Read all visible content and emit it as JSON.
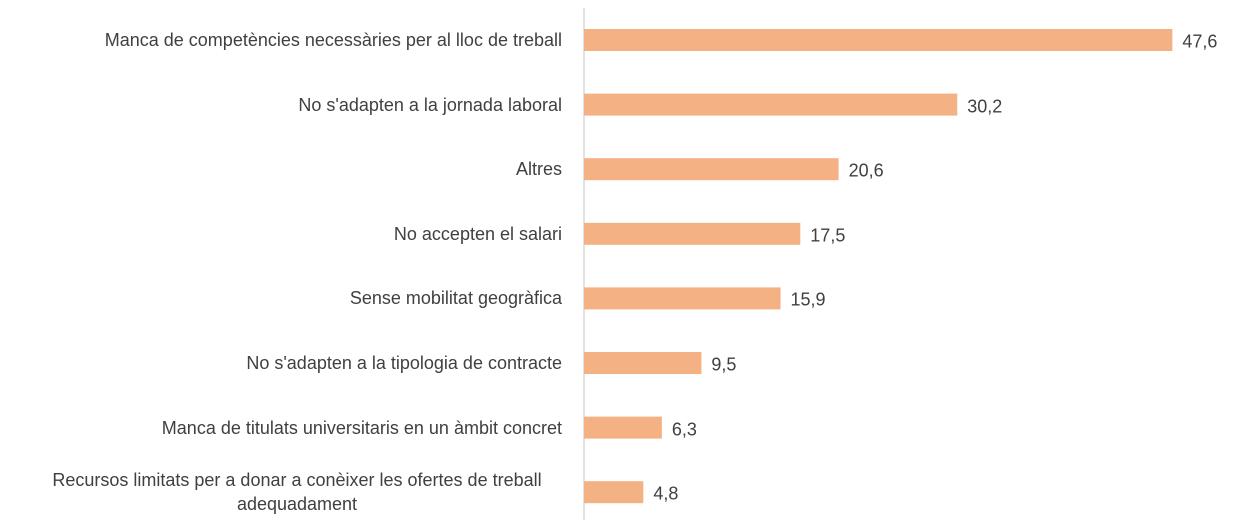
{
  "chart_data": {
    "type": "bar",
    "orientation": "horizontal",
    "categories": [
      "Manca de competències necessàries per al lloc de treball",
      "No s'adapten  a la jornada laboral",
      "Altres",
      "No accepten el salari",
      "Sense mobilitat geogràfica",
      "No s'adapten a la tipologia de contracte",
      "Manca de titulats universitaris en un àmbit concret",
      "Recursos limitats per a donar a conèixer les ofertes de treball adequadament"
    ],
    "values": [
      47.6,
      30.2,
      20.6,
      17.5,
      15.9,
      9.5,
      6.3,
      4.8
    ],
    "value_labels": [
      "47,6",
      "30,2",
      "20,6",
      "17,5",
      "15,9",
      "9,5",
      "6,3",
      "4,8"
    ],
    "color": "#f4b183",
    "xlim": [
      0,
      50
    ]
  }
}
